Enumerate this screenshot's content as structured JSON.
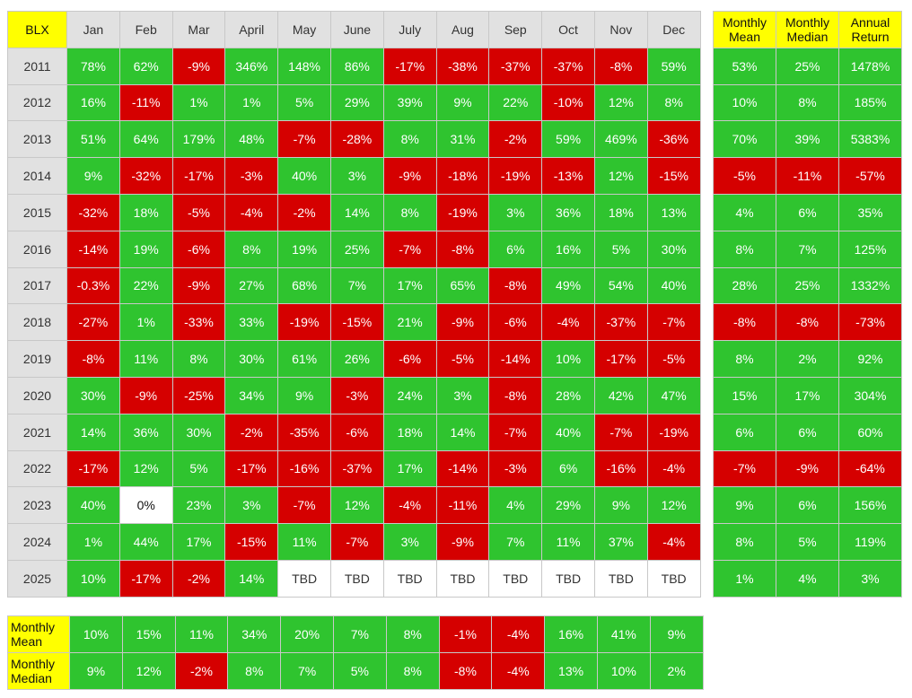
{
  "title": "BLX",
  "months": [
    "Jan",
    "Feb",
    "Mar",
    "April",
    "May",
    "June",
    "July",
    "Aug",
    "Sep",
    "Oct",
    "Nov",
    "Dec"
  ],
  "summary_headers": [
    "Monthly Mean",
    "Monthly Median",
    "Annual Return"
  ],
  "years": [
    "2011",
    "2012",
    "2013",
    "2014",
    "2015",
    "2016",
    "2017",
    "2018",
    "2019",
    "2020",
    "2021",
    "2022",
    "2023",
    "2024",
    "2025"
  ],
  "monthly_returns": [
    [
      "78%",
      "62%",
      "-9%",
      "346%",
      "148%",
      "86%",
      "-17%",
      "-38%",
      "-37%",
      "-37%",
      "-8%",
      "59%"
    ],
    [
      "16%",
      "-11%",
      "1%",
      "1%",
      "5%",
      "29%",
      "39%",
      "9%",
      "22%",
      "-10%",
      "12%",
      "8%"
    ],
    [
      "51%",
      "64%",
      "179%",
      "48%",
      "-7%",
      "-28%",
      "8%",
      "31%",
      "-2%",
      "59%",
      "469%",
      "-36%"
    ],
    [
      "9%",
      "-32%",
      "-17%",
      "-3%",
      "40%",
      "3%",
      "-9%",
      "-18%",
      "-19%",
      "-13%",
      "12%",
      "-15%"
    ],
    [
      "-32%",
      "18%",
      "-5%",
      "-4%",
      "-2%",
      "14%",
      "8%",
      "-19%",
      "3%",
      "36%",
      "18%",
      "13%"
    ],
    [
      "-14%",
      "19%",
      "-6%",
      "8%",
      "19%",
      "25%",
      "-7%",
      "-8%",
      "6%",
      "16%",
      "5%",
      "30%"
    ],
    [
      "-0.3%",
      "22%",
      "-9%",
      "27%",
      "68%",
      "7%",
      "17%",
      "65%",
      "-8%",
      "49%",
      "54%",
      "40%"
    ],
    [
      "-27%",
      "1%",
      "-33%",
      "33%",
      "-19%",
      "-15%",
      "21%",
      "-9%",
      "-6%",
      "-4%",
      "-37%",
      "-7%"
    ],
    [
      "-8%",
      "11%",
      "8%",
      "30%",
      "61%",
      "26%",
      "-6%",
      "-5%",
      "-14%",
      "10%",
      "-17%",
      "-5%"
    ],
    [
      "30%",
      "-9%",
      "-25%",
      "34%",
      "9%",
      "-3%",
      "24%",
      "3%",
      "-8%",
      "28%",
      "42%",
      "47%"
    ],
    [
      "14%",
      "36%",
      "30%",
      "-2%",
      "-35%",
      "-6%",
      "18%",
      "14%",
      "-7%",
      "40%",
      "-7%",
      "-19%"
    ],
    [
      "-17%",
      "12%",
      "5%",
      "-17%",
      "-16%",
      "-37%",
      "17%",
      "-14%",
      "-3%",
      "6%",
      "-16%",
      "-4%"
    ],
    [
      "40%",
      "0%",
      "23%",
      "3%",
      "-7%",
      "12%",
      "-4%",
      "-11%",
      "4%",
      "29%",
      "9%",
      "12%"
    ],
    [
      "1%",
      "44%",
      "17%",
      "-15%",
      "11%",
      "-7%",
      "3%",
      "-9%",
      "7%",
      "11%",
      "37%",
      "-4%"
    ],
    [
      "10%",
      "-17%",
      "-2%",
      "14%",
      "TBD",
      "TBD",
      "TBD",
      "TBD",
      "TBD",
      "TBD",
      "TBD",
      "TBD"
    ]
  ],
  "yearly_summary": [
    [
      "53%",
      "25%",
      "1478%"
    ],
    [
      "10%",
      "8%",
      "185%"
    ],
    [
      "70%",
      "39%",
      "5383%"
    ],
    [
      "-5%",
      "-11%",
      "-57%"
    ],
    [
      "4%",
      "6%",
      "35%"
    ],
    [
      "8%",
      "7%",
      "125%"
    ],
    [
      "28%",
      "25%",
      "1332%"
    ],
    [
      "-8%",
      "-8%",
      "-73%"
    ],
    [
      "8%",
      "2%",
      "92%"
    ],
    [
      "15%",
      "17%",
      "304%"
    ],
    [
      "6%",
      "6%",
      "60%"
    ],
    [
      "-7%",
      "-9%",
      "-64%"
    ],
    [
      "9%",
      "6%",
      "156%"
    ],
    [
      "8%",
      "5%",
      "119%"
    ],
    [
      "1%",
      "4%",
      "3%"
    ]
  ],
  "bottom_rows": [
    {
      "label": "Monthly Mean",
      "values": [
        "10%",
        "15%",
        "11%",
        "34%",
        "20%",
        "7%",
        "8%",
        "-1%",
        "-4%",
        "16%",
        "41%",
        "9%"
      ]
    },
    {
      "label": "Monthly Median",
      "values": [
        "9%",
        "12%",
        "-2%",
        "8%",
        "7%",
        "5%",
        "8%",
        "-8%",
        "-4%",
        "13%",
        "10%",
        "2%"
      ]
    }
  ],
  "colors": {
    "positive": "#2fc42f",
    "negative": "#d50000",
    "header_yellow": "#ffff00",
    "header_gray": "#e1e1e1"
  },
  "chart_data": {
    "type": "heatmap",
    "title": "BLX",
    "x": [
      "Jan",
      "Feb",
      "Mar",
      "April",
      "May",
      "June",
      "July",
      "Aug",
      "Sep",
      "Oct",
      "Nov",
      "Dec"
    ],
    "y": [
      "2011",
      "2012",
      "2013",
      "2014",
      "2015",
      "2016",
      "2017",
      "2018",
      "2019",
      "2020",
      "2021",
      "2022",
      "2023",
      "2024",
      "2025"
    ],
    "values": [
      [
        78,
        62,
        -9,
        346,
        148,
        86,
        -17,
        -38,
        -37,
        -37,
        -8,
        59
      ],
      [
        16,
        -11,
        1,
        1,
        5,
        29,
        39,
        9,
        22,
        -10,
        12,
        8
      ],
      [
        51,
        64,
        179,
        48,
        -7,
        -28,
        8,
        31,
        -2,
        59,
        469,
        -36
      ],
      [
        9,
        -32,
        -17,
        -3,
        40,
        3,
        -9,
        -18,
        -19,
        -13,
        12,
        -15
      ],
      [
        -32,
        18,
        -5,
        -4,
        -2,
        14,
        8,
        -19,
        3,
        36,
        18,
        13
      ],
      [
        -14,
        19,
        -6,
        8,
        19,
        25,
        -7,
        -8,
        6,
        16,
        5,
        30
      ],
      [
        -0.3,
        22,
        -9,
        27,
        68,
        7,
        17,
        65,
        -8,
        49,
        54,
        40
      ],
      [
        -27,
        1,
        -33,
        33,
        -19,
        -15,
        21,
        -9,
        -6,
        -4,
        -37,
        -7
      ],
      [
        -8,
        11,
        8,
        30,
        61,
        26,
        -6,
        -5,
        -14,
        10,
        -17,
        -5
      ],
      [
        30,
        -9,
        -25,
        34,
        9,
        -3,
        24,
        3,
        -8,
        28,
        42,
        47
      ],
      [
        14,
        36,
        30,
        -2,
        -35,
        -6,
        18,
        14,
        -7,
        40,
        -7,
        -19
      ],
      [
        -17,
        12,
        5,
        -17,
        -16,
        -37,
        17,
        -14,
        -3,
        6,
        -16,
        -4
      ],
      [
        40,
        0,
        23,
        3,
        -7,
        12,
        -4,
        -11,
        4,
        29,
        9,
        12
      ],
      [
        1,
        44,
        17,
        -15,
        11,
        -7,
        3,
        -9,
        7,
        11,
        37,
        -4
      ],
      [
        10,
        -17,
        -2,
        14,
        null,
        null,
        null,
        null,
        null,
        null,
        null,
        null
      ]
    ]
  }
}
